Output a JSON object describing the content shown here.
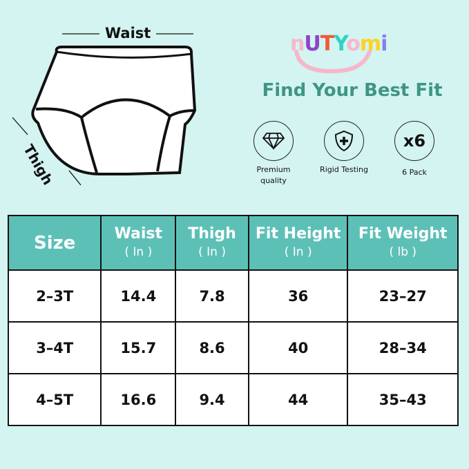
{
  "diagram": {
    "waist_label": "Waist",
    "thigh_label": "Thigh"
  },
  "brand": {
    "letters": [
      "n",
      "U",
      "T",
      "Y",
      "o",
      "m",
      "i"
    ],
    "colors": [
      "#f7b6cc",
      "#8e44c9",
      "#f05a3a",
      "#2fd3c6",
      "#f7b6cc",
      "#ffd21f",
      "#8a7cf0"
    ]
  },
  "title": "Find Your Best Fit",
  "features": [
    {
      "icon": "diamond-icon",
      "label": "Premium quality"
    },
    {
      "icon": "shield-plus-icon",
      "label": "Rigid Testing"
    },
    {
      "icon": "x6-badge",
      "badge": "x6",
      "label": "6 Pack"
    }
  ],
  "table": {
    "headers": [
      {
        "label": "Size",
        "unit": ""
      },
      {
        "label": "Waist",
        "unit": "( In )"
      },
      {
        "label": "Thigh",
        "unit": "( In )"
      },
      {
        "label": "Fit Height",
        "unit": "( In )"
      },
      {
        "label": "Fit Weight",
        "unit": "( lb )"
      }
    ],
    "rows": [
      [
        "2–3T",
        "14.4",
        "7.8",
        "36",
        "23–27"
      ],
      [
        "3–4T",
        "15.7",
        "8.6",
        "40",
        "28–34"
      ],
      [
        "4–5T",
        "16.6",
        "9.4",
        "44",
        "35–43"
      ]
    ]
  },
  "colors": {
    "header": "#5dc0b7",
    "title": "#3f9585",
    "background": "#d3f4f0"
  }
}
